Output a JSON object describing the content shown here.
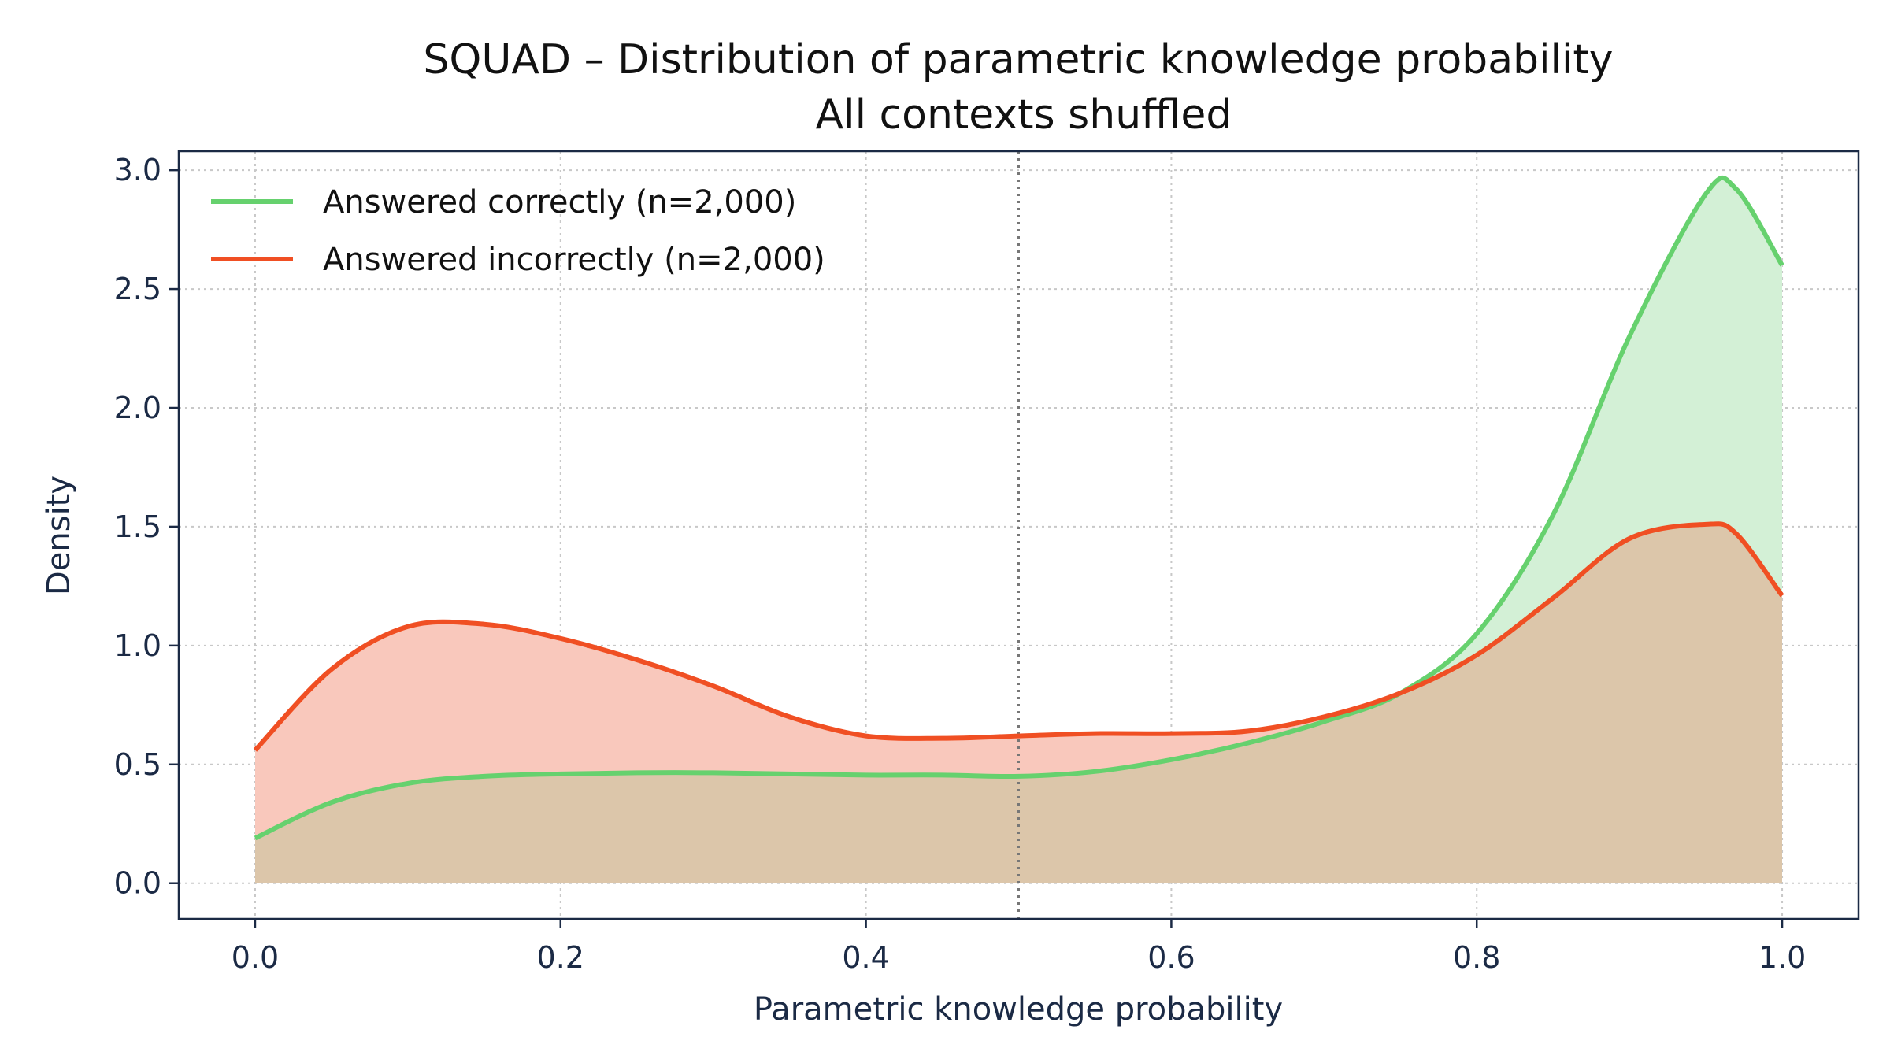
{
  "chart_data": {
    "type": "area",
    "title": "SQUAD – Distribution of parametric knowledge probability",
    "subtitle": "All contexts shuffled",
    "xlabel": "Parametric knowledge probability",
    "ylabel": "Density",
    "xlim": [
      -0.05,
      1.05
    ],
    "ylim": [
      -0.15,
      3.08
    ],
    "xticks": [
      0.0,
      0.2,
      0.4,
      0.6,
      0.8,
      1.0
    ],
    "xtick_labels": [
      "0.0",
      "0.2",
      "0.4",
      "0.6",
      "0.8",
      "1.0"
    ],
    "yticks": [
      0.0,
      0.5,
      1.0,
      1.5,
      2.0,
      2.5,
      3.0
    ],
    "ytick_labels": [
      "0.0",
      "0.5",
      "1.0",
      "1.5",
      "2.0",
      "2.5",
      "3.0"
    ],
    "grid": true,
    "legend_position": "top-left",
    "reference_line": {
      "x": 0.5,
      "style": "dotted",
      "color": "#777777"
    },
    "x": [
      0.0,
      0.05,
      0.1,
      0.15,
      0.2,
      0.25,
      0.3,
      0.35,
      0.4,
      0.45,
      0.5,
      0.55,
      0.6,
      0.65,
      0.7,
      0.75,
      0.8,
      0.85,
      0.9,
      0.95,
      0.97,
      1.0
    ],
    "series": [
      {
        "name": "Answered correctly (n=2,000)",
        "color": "#66d16e",
        "fill": "#d3f0d6",
        "values": [
          0.19,
          0.34,
          0.42,
          0.45,
          0.46,
          0.465,
          0.465,
          0.46,
          0.455,
          0.455,
          0.45,
          0.47,
          0.52,
          0.59,
          0.68,
          0.8,
          1.05,
          1.55,
          2.3,
          2.9,
          2.92,
          2.6
        ]
      },
      {
        "name": "Answered incorrectly (n=2,000)",
        "color": "#f04f23",
        "fill": "#f9c8bc",
        "values": [
          0.56,
          0.9,
          1.08,
          1.09,
          1.03,
          0.94,
          0.83,
          0.7,
          0.62,
          0.61,
          0.62,
          0.63,
          0.63,
          0.64,
          0.7,
          0.8,
          0.96,
          1.2,
          1.45,
          1.51,
          1.47,
          1.21
        ]
      }
    ],
    "overlap_fill": "#dcc6aa"
  }
}
